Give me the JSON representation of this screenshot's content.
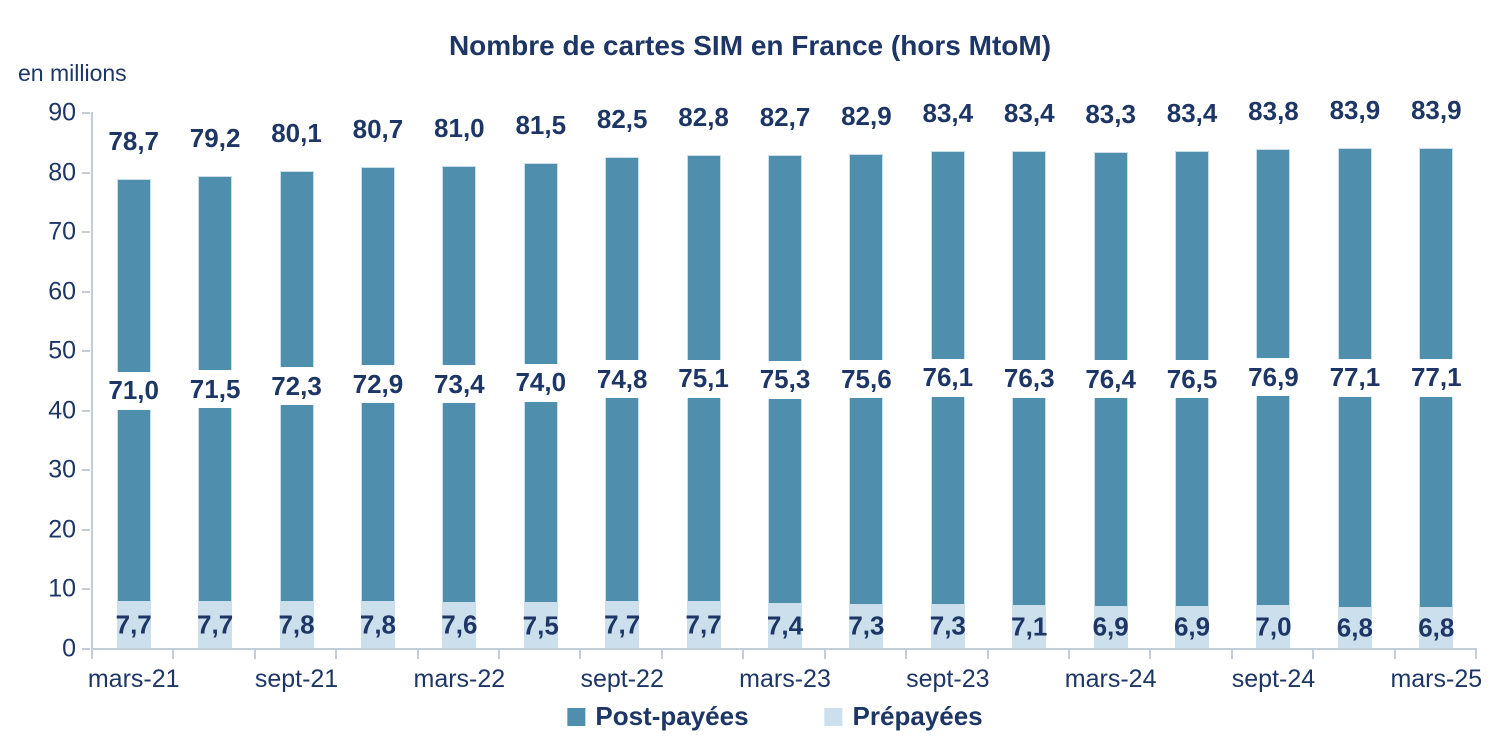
{
  "title": "Nombre de cartes SIM en France (hors MtoM)",
  "unit_label": "en millions",
  "colors": {
    "text_navy": "#1d3665",
    "postpaid": "#4F8FAD",
    "prepaid": "#CBDFEC",
    "axis": "#c2cdd9",
    "background": "#ffffff"
  },
  "chart_data": {
    "type": "bar",
    "stacked": true,
    "title": "Nombre de cartes SIM en France (hors MtoM)",
    "ylabel": "en millions",
    "ylim": [
      0,
      90
    ],
    "y_ticks": [
      0,
      10,
      20,
      30,
      40,
      50,
      60,
      70,
      80,
      90
    ],
    "grid": false,
    "legend_position": "bottom",
    "num_bars": 17,
    "x_tick_labels": [
      "mars-21",
      "sept-21",
      "mars-22",
      "sept-22",
      "mars-23",
      "sept-23",
      "mars-24",
      "sept-24",
      "mars-25"
    ],
    "x_label_interval": 2,
    "series": [
      {
        "name": "Post-payées",
        "color": "#4F8FAD",
        "values": [
          71.0,
          71.5,
          72.3,
          72.9,
          73.4,
          74.0,
          74.8,
          75.1,
          75.3,
          75.6,
          76.1,
          76.3,
          76.4,
          76.5,
          76.9,
          77.1,
          77.1
        ],
        "labels": [
          "71,0",
          "71,5",
          "72,3",
          "72,9",
          "73,4",
          "74,0",
          "74,8",
          "75,1",
          "75,3",
          "75,6",
          "76,1",
          "76,3",
          "76,4",
          "76,5",
          "76,9",
          "77,1",
          "77,1"
        ]
      },
      {
        "name": "Prépayées",
        "color": "#CBDFEC",
        "values": [
          7.7,
          7.7,
          7.8,
          7.8,
          7.6,
          7.5,
          7.7,
          7.7,
          7.4,
          7.3,
          7.3,
          7.1,
          6.9,
          6.9,
          7.0,
          6.8,
          6.8
        ],
        "labels": [
          "7,7",
          "7,7",
          "7,8",
          "7,8",
          "7,6",
          "7,5",
          "7,7",
          "7,7",
          "7,4",
          "7,3",
          "7,3",
          "7,1",
          "6,9",
          "6,9",
          "7,0",
          "6,8",
          "6,8"
        ]
      }
    ],
    "totals": {
      "values": [
        78.7,
        79.2,
        80.1,
        80.7,
        81.0,
        81.5,
        82.5,
        82.8,
        82.7,
        82.9,
        83.4,
        83.4,
        83.3,
        83.4,
        83.8,
        83.9,
        83.9
      ],
      "labels": [
        "78,7",
        "79,2",
        "80,1",
        "80,7",
        "81,0",
        "81,5",
        "82,5",
        "82,8",
        "82,7",
        "82,9",
        "83,4",
        "83,4",
        "83,3",
        "83,4",
        "83,8",
        "83,9",
        "83,9"
      ]
    }
  },
  "legend": {
    "items": [
      {
        "label": "Post-payées",
        "color": "#4F8FAD"
      },
      {
        "label": "Prépayées",
        "color": "#CBDFEC"
      }
    ]
  }
}
